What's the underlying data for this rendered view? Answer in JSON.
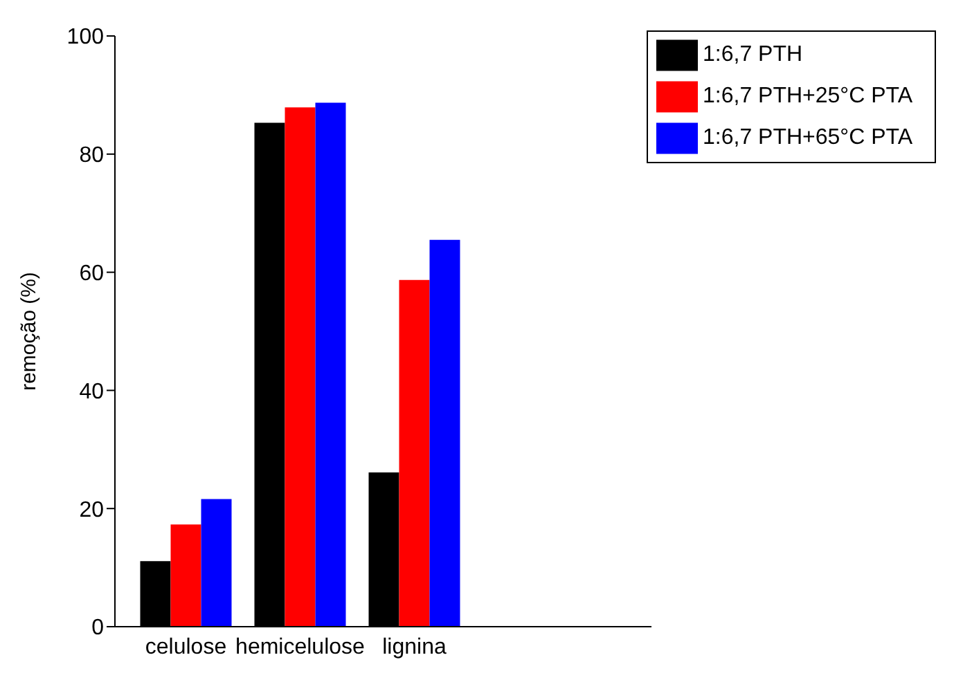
{
  "chart_data": {
    "type": "bar",
    "categories": [
      "celulose",
      "hemicelulose",
      "lignina"
    ],
    "series": [
      {
        "name": "1:6,7 PTH",
        "color": "#000000",
        "values": [
          11.1,
          85.3,
          26.1
        ]
      },
      {
        "name": "1:6,7 PTH+25°C PTA",
        "color": "#ff0000",
        "values": [
          17.3,
          87.9,
          58.7
        ]
      },
      {
        "name": "1:6,7 PTH+65°C PTA",
        "color": "#0000ff",
        "values": [
          21.6,
          88.7,
          65.5
        ]
      }
    ],
    "ylabel": "remoção (%)",
    "ylim": [
      0,
      100
    ],
    "yticks": [
      0,
      20,
      40,
      60,
      80,
      100
    ],
    "grid": false,
    "legend": "top right"
  }
}
